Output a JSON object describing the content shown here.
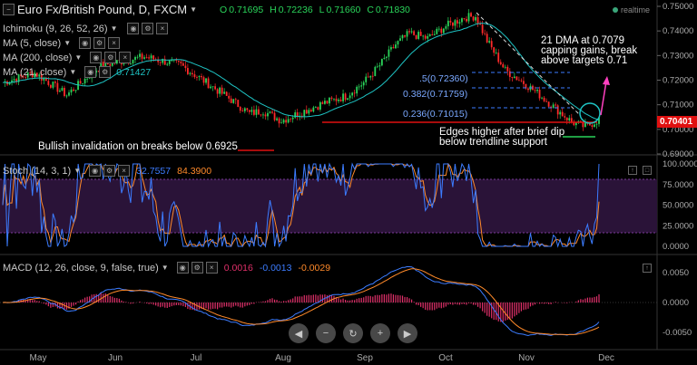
{
  "header": {
    "collapse_icon": "minus-box-icon",
    "symbol_title": "Euro Fx/British Pound, D, FXCM",
    "ohlc": [
      {
        "k": "O",
        "v": "0.71695"
      },
      {
        "k": "H",
        "v": "0.72236"
      },
      {
        "k": "L",
        "v": "0.71660"
      },
      {
        "k": "C",
        "v": "0.71830"
      }
    ],
    "realtime_label": "realtime"
  },
  "indicators": [
    {
      "label": "Ichimoku (9, 26, 52, 26)"
    },
    {
      "label": "MA (5, close)"
    },
    {
      "label": "MA (200, close)"
    },
    {
      "label": "MA (21, close)",
      "value": "0.71427"
    }
  ],
  "price_axis": {
    "ticks": [
      "0.75000",
      "0.74000",
      "0.73000",
      "0.72000",
      "0.71000",
      "0.70000",
      "0.69000"
    ],
    "last_price": "0.70401",
    "last_price_color": "#e01010"
  },
  "fib_levels": [
    {
      "label": ".5(0.72360)"
    },
    {
      "label": "0.382(0.71759)"
    },
    {
      "label": "0.236(0.71015)"
    }
  ],
  "annotations": {
    "top_right": [
      "21 DMA at 0.7079",
      "capping gains, break",
      "above targets 0.71"
    ],
    "bottom_right": [
      "Edges higher after brief dip",
      "below trendline support"
    ],
    "bottom_left": "Bullish invalidation on breaks below 0.6925"
  },
  "stoch": {
    "label": "Stoch (14, 3, 1)",
    "k_value": "32.7557",
    "d_value": "84.3900",
    "k_color": "#3c7cff",
    "d_color": "#ff8a2a",
    "ticks": [
      "100.0000",
      "75.0000",
      "50.0000",
      "25.0000",
      "0.0000"
    ]
  },
  "macd": {
    "label": "MACD (12, 26, close, 9, false, true)",
    "v1": "0.0016",
    "v2": "-0.0013",
    "v3": "-0.0029",
    "hist_color": "#e0306a",
    "macd_color": "#3c7cff",
    "signal_color": "#ff8a2a",
    "ticks": [
      "0.0050",
      "0.0000",
      "-0.0050"
    ]
  },
  "time_axis": [
    "May",
    "Jun",
    "Jul",
    "Aug",
    "Sep",
    "Oct",
    "Nov",
    "Dec"
  ],
  "nav_buttons": [
    {
      "name": "scroll-left-button",
      "icon": "◀"
    },
    {
      "name": "zoom-out-button",
      "icon": "−"
    },
    {
      "name": "reset-button",
      "icon": "↻"
    },
    {
      "name": "zoom-in-button",
      "icon": "+"
    },
    {
      "name": "scroll-right-button",
      "icon": "▶"
    }
  ],
  "colors": {
    "up_candle": "#2ad45a",
    "down_candle": "#ff2a2a",
    "ma21": "#1ec4c4",
    "support_line": "#e01010",
    "fib_line": "#3c7cff",
    "stoch_band": "#2a1338",
    "arrow": "#ff40c0"
  }
}
